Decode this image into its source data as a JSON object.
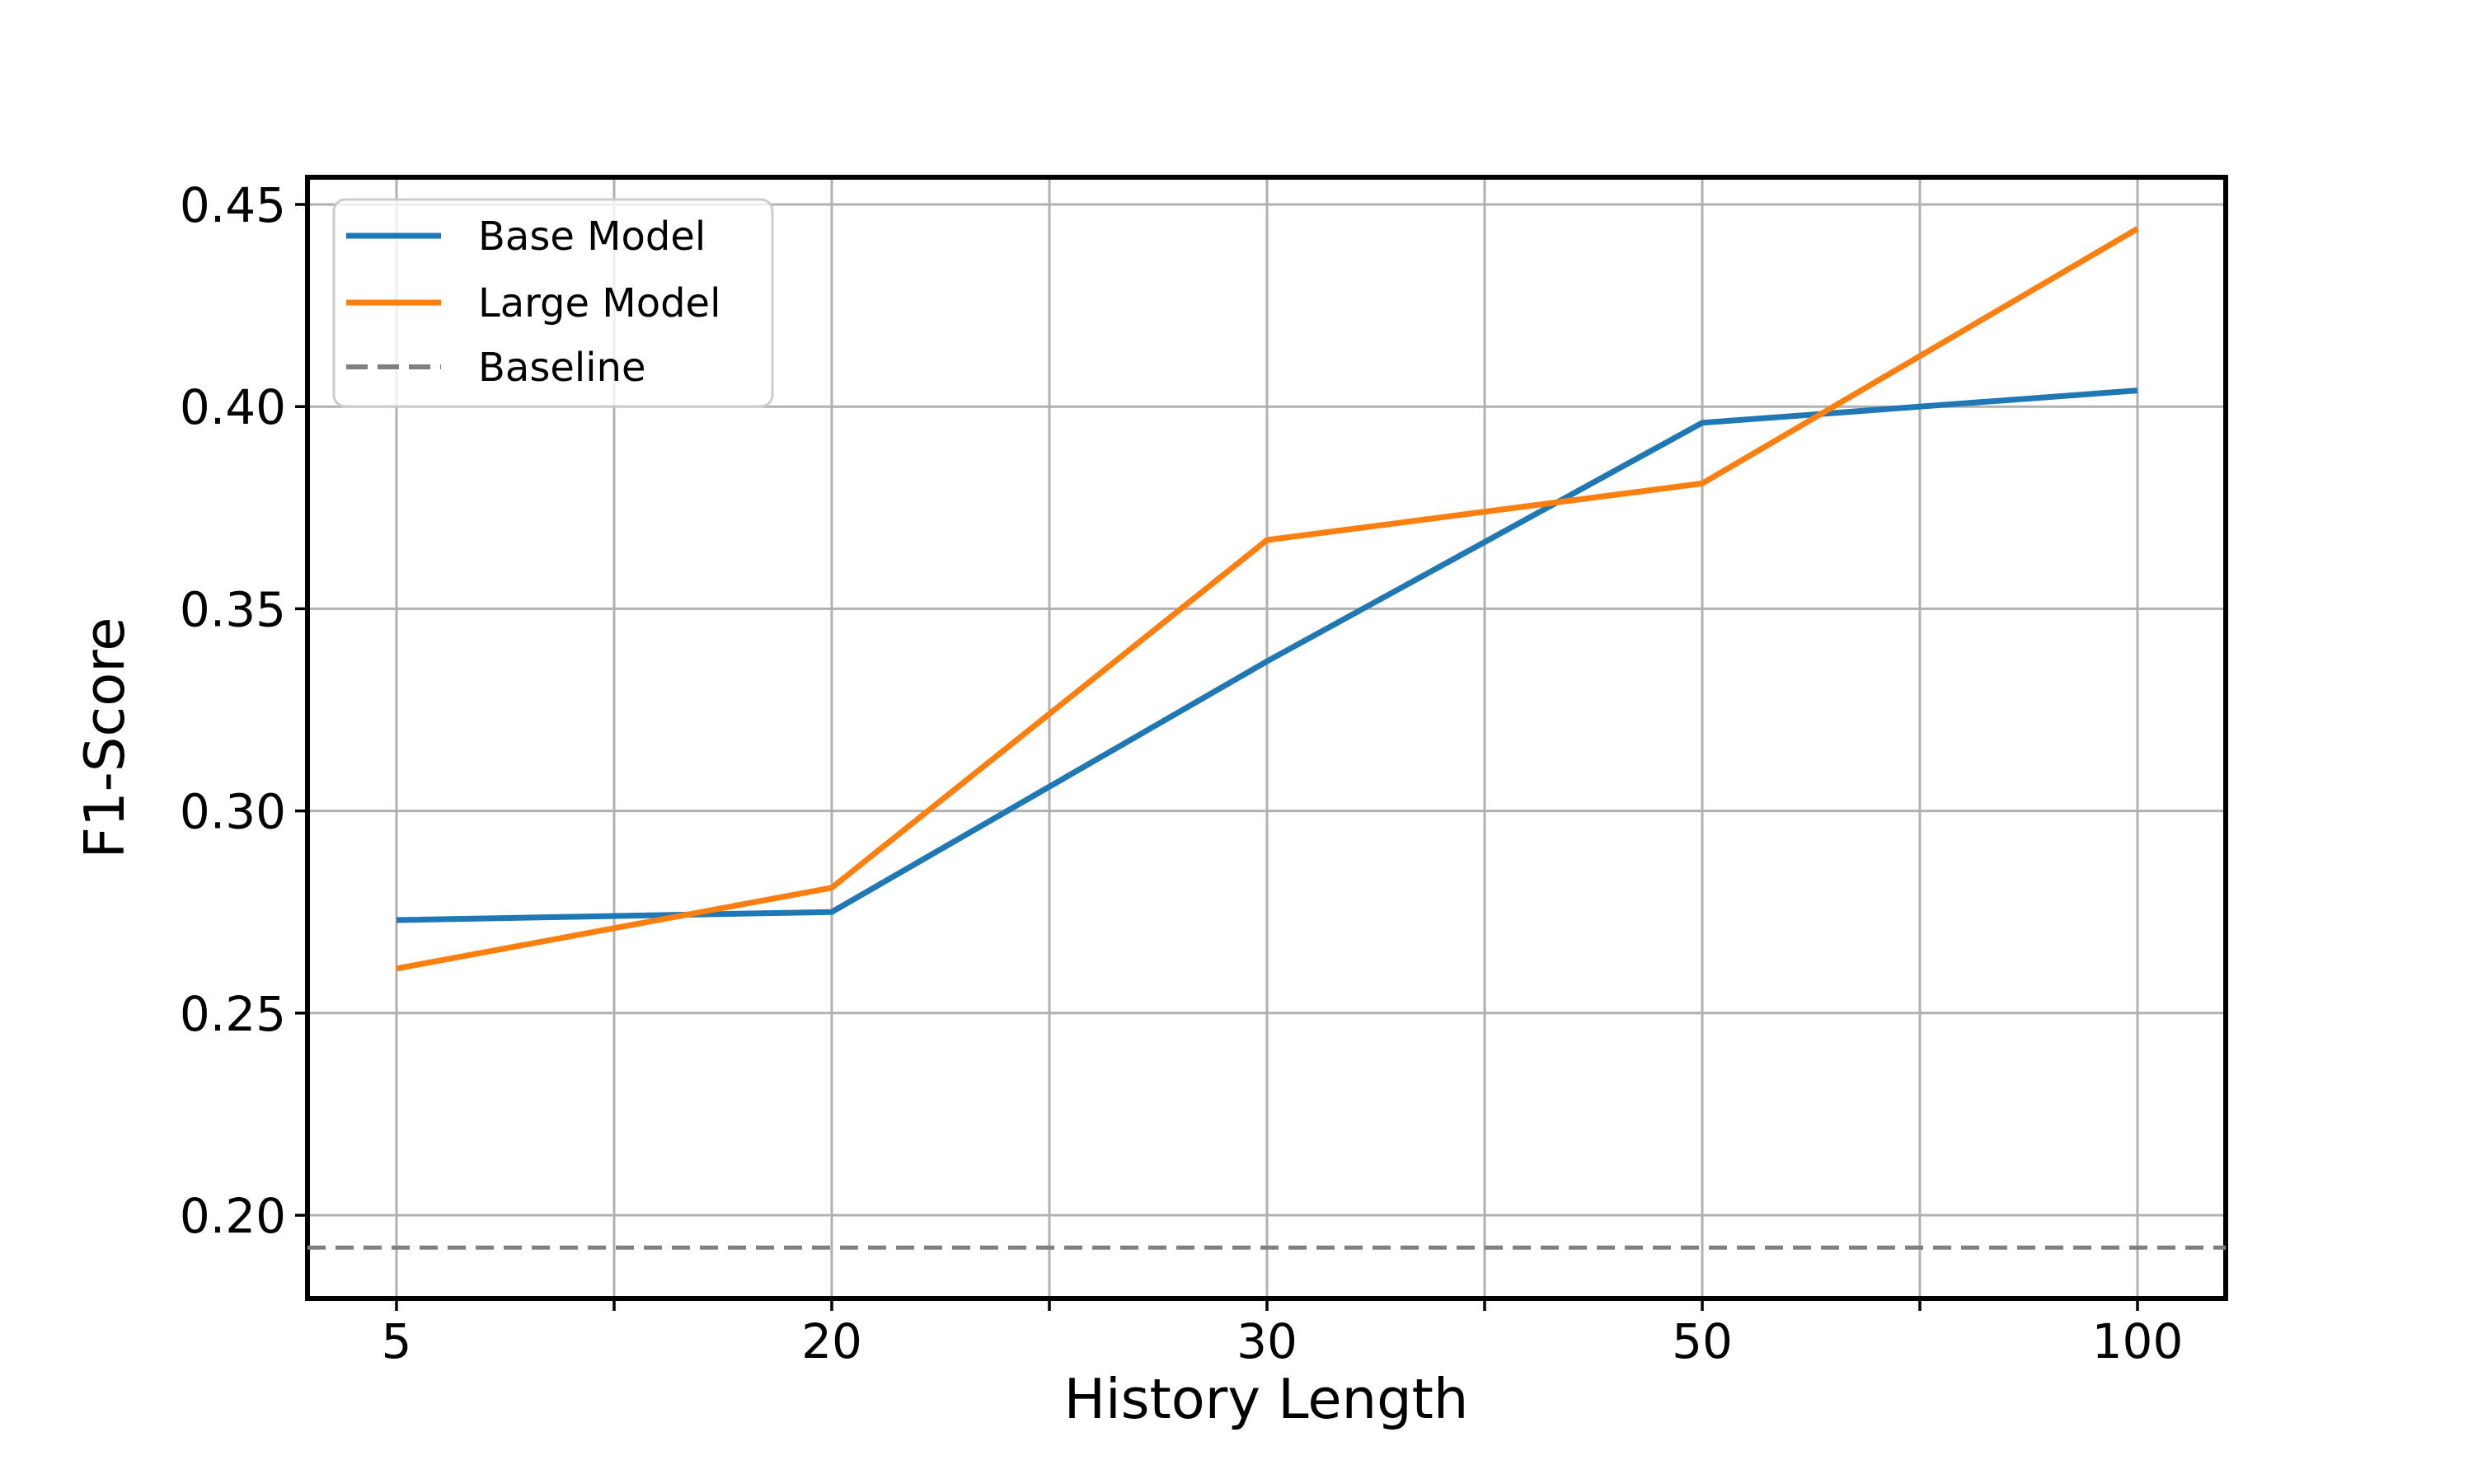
{
  "chart_data": {
    "type": "line",
    "title": "",
    "xlabel": "History Length",
    "ylabel": "F1-Score",
    "x": [
      5,
      20,
      30,
      50,
      100
    ],
    "x_tick_labels": [
      "5",
      "20",
      "30",
      "50",
      "100"
    ],
    "y_ticks": [
      0.45,
      0.4,
      0.35,
      0.3,
      0.25,
      0.2
    ],
    "y_tick_labels": [
      "0.45",
      "0.40",
      "0.35",
      "0.30",
      "0.25",
      "0.20"
    ],
    "ylim": [
      0.179,
      0.457
    ],
    "grid": true,
    "legend_position": "upper left",
    "series": [
      {
        "name": "Base Model",
        "color": "#1f77b4",
        "style": "solid",
        "values": [
          0.273,
          0.275,
          0.337,
          0.396,
          0.404
        ]
      },
      {
        "name": "Large Model",
        "color": "#ff7f0e",
        "style": "solid",
        "values": [
          0.261,
          0.281,
          0.367,
          0.381,
          0.444
        ]
      }
    ],
    "baseline": {
      "name": "Baseline",
      "color": "#808080",
      "style": "dashed",
      "value": 0.192
    },
    "legend": {
      "entries": [
        "Base Model",
        "Large Model",
        "Baseline"
      ]
    },
    "colors": {
      "grid": "#b0b0b0",
      "spine": "#000000",
      "legend_border": "#cccccc"
    }
  }
}
